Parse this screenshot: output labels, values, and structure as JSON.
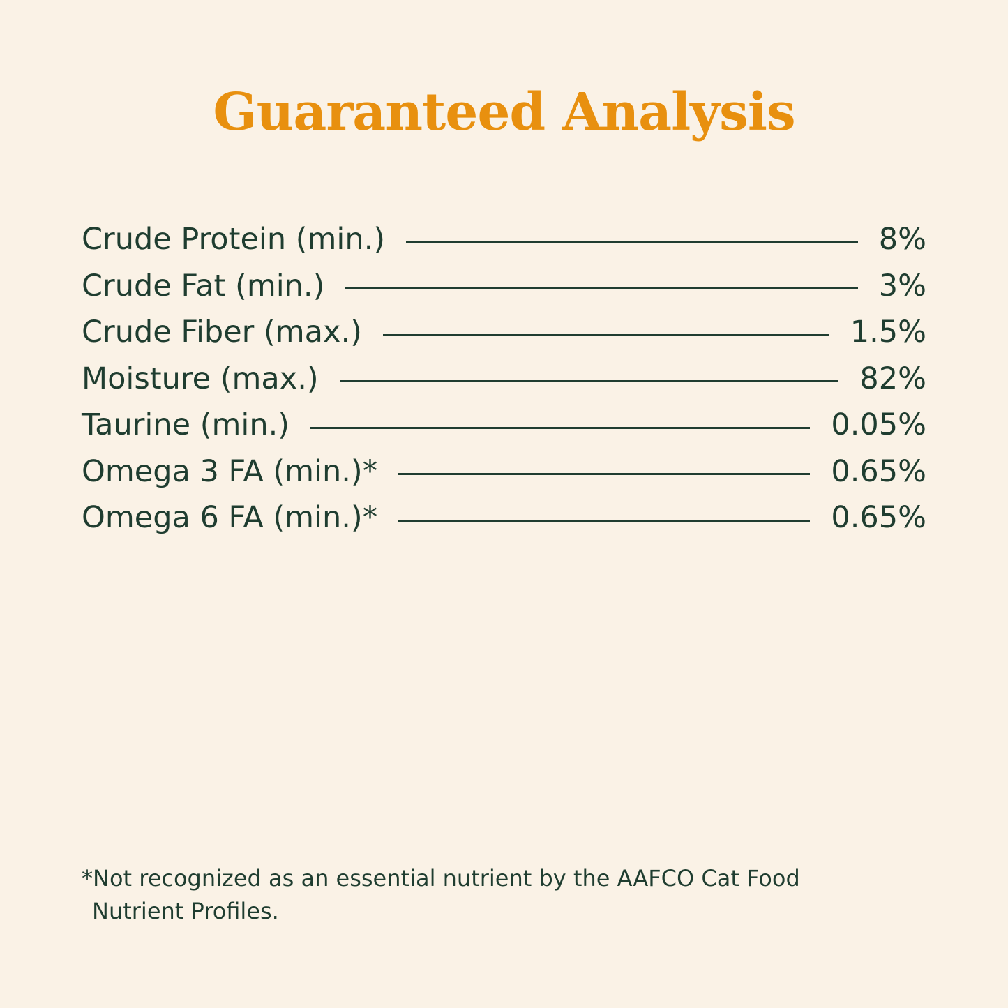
{
  "title": "Guaranteed Analysis",
  "colors": {
    "background": "#faf2e6",
    "title": "#e8900f",
    "text": "#1f3d30"
  },
  "rows": [
    {
      "label": "Crude Protein (min.)",
      "value": "8%"
    },
    {
      "label": "Crude Fat (min.)",
      "value": "3%"
    },
    {
      "label": "Crude Fiber (max.)",
      "value": "1.5%"
    },
    {
      "label": "Moisture (max.)",
      "value": "82%"
    },
    {
      "label": "Taurine (min.)",
      "value": "0.05%"
    },
    {
      "label": "Omega 3 FA (min.)*",
      "value": "0.65%"
    },
    {
      "label": "Omega 6 FA (min.)*",
      "value": "0.65%"
    }
  ],
  "footnote": "*Not recognized as an essential nutrient by the AAFCO Cat Food Nutrient Profiles."
}
